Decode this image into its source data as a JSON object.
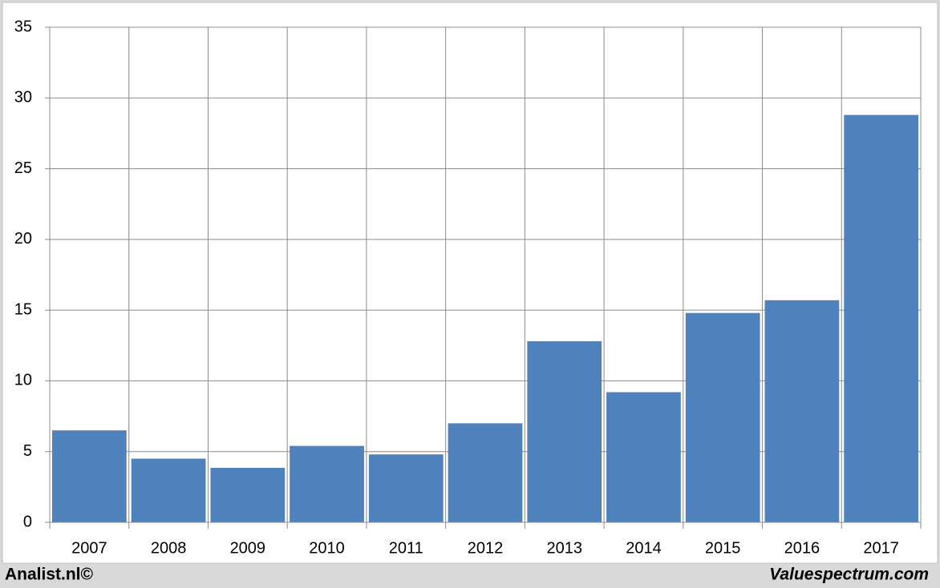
{
  "chart_data": {
    "type": "bar",
    "categories": [
      "2007",
      "2008",
      "2009",
      "2010",
      "2011",
      "2012",
      "2013",
      "2014",
      "2015",
      "2016",
      "2017"
    ],
    "values": [
      6.5,
      4.5,
      3.85,
      5.4,
      4.8,
      7.0,
      12.8,
      9.2,
      14.8,
      15.7,
      28.8
    ],
    "color": "#4f81bd",
    "ylim": [
      0,
      35
    ],
    "yticks": [
      0,
      5,
      10,
      15,
      20,
      25,
      30,
      35
    ],
    "grid": true
  },
  "footer": {
    "left": "Analist.nl©",
    "right": "Valuespectrum.com"
  }
}
